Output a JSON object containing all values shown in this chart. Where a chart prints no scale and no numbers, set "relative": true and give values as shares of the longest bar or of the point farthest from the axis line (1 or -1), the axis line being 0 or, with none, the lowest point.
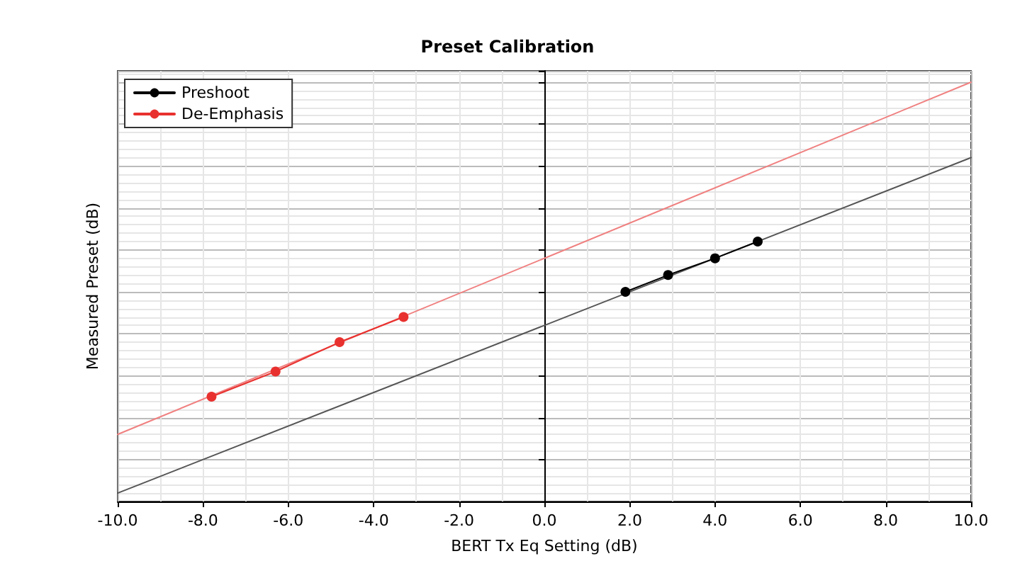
{
  "chart_data": {
    "type": "line",
    "title": "Preset Calibration",
    "xlabel": "BERT Tx Eq Setting (dB)",
    "ylabel": "Measured Preset (dB)",
    "relative": true,
    "xlim": [
      -10,
      10
    ],
    "xticks": [
      {
        "value": -10,
        "label": "-10.0"
      },
      {
        "value": -8,
        "label": "-8.0"
      },
      {
        "value": -6,
        "label": "-6.0"
      },
      {
        "value": -4,
        "label": "-4.0"
      },
      {
        "value": -2,
        "label": "-2.0"
      },
      {
        "value": 0,
        "label": "0.0"
      },
      {
        "value": 2,
        "label": "2.0"
      },
      {
        "value": 4,
        "label": "4.0"
      },
      {
        "value": 6,
        "label": "6.0"
      },
      {
        "value": 8,
        "label": "8.0"
      },
      {
        "value": 10,
        "label": "10.0"
      }
    ],
    "grid": true,
    "legend": "top left",
    "marker": "circle",
    "line_style": "solid",
    "series": [
      {
        "name": "Preshoot",
        "color": "#000000",
        "x": [
          1.9,
          2.9,
          4.0,
          5.0
        ],
        "values": [
          0.5,
          0.54,
          0.58,
          0.62
        ]
      },
      {
        "name": "De-Emphasis",
        "color": "#e8312e",
        "x": [
          -7.8,
          -6.3,
          -4.8,
          -3.3
        ],
        "values": [
          0.25,
          0.31,
          0.38,
          0.44
        ]
      },
      {
        "color": "#555555",
        "x": [
          -10,
          10
        ],
        "values": [
          0.02,
          0.82
        ],
        "marker": "none"
      },
      {
        "color": "#f08080",
        "x": [
          -10,
          10
        ],
        "values": [
          0.16,
          1.0
        ],
        "marker": "none"
      }
    ]
  }
}
